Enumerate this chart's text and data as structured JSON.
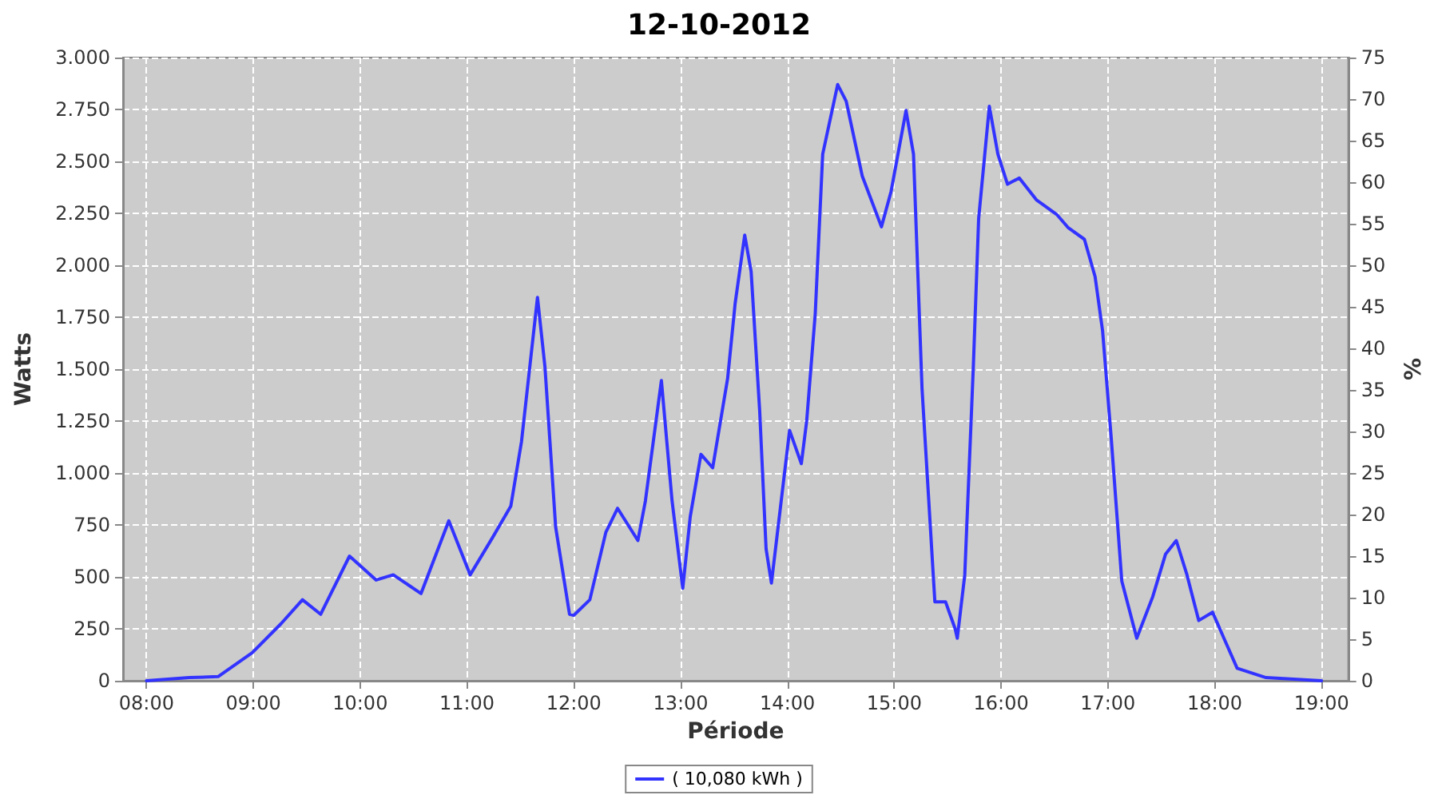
{
  "chart_data": {
    "type": "line",
    "title": "12-10-2012",
    "xlabel": "Période",
    "ylabel": "Watts",
    "y2label": "%",
    "xlim": [
      7.78,
      19.25
    ],
    "xticks": [
      {
        "value": 8,
        "label": "08:00"
      },
      {
        "value": 9,
        "label": "09:00"
      },
      {
        "value": 10,
        "label": "10:00"
      },
      {
        "value": 11,
        "label": "11:00"
      },
      {
        "value": 12,
        "label": "12:00"
      },
      {
        "value": 13,
        "label": "13:00"
      },
      {
        "value": 14,
        "label": "14:00"
      },
      {
        "value": 15,
        "label": "15:00"
      },
      {
        "value": 16,
        "label": "16:00"
      },
      {
        "value": 17,
        "label": "17:00"
      },
      {
        "value": 18,
        "label": "18:00"
      },
      {
        "value": 19,
        "label": "19:00"
      }
    ],
    "ylim": [
      0,
      3000
    ],
    "yticks": [
      0,
      250,
      500,
      750,
      {
        "value": 1000,
        "label": "1.000"
      },
      {
        "value": 1250,
        "label": "1.250"
      },
      {
        "value": 1500,
        "label": "1.500"
      },
      {
        "value": 1750,
        "label": "1.750"
      },
      {
        "value": 2000,
        "label": "2.000"
      },
      {
        "value": 2250,
        "label": "2.250"
      },
      {
        "value": 2500,
        "label": "2.500"
      },
      {
        "value": 2750,
        "label": "2.750"
      },
      {
        "value": 3000,
        "label": "3.000"
      }
    ],
    "y2lim": [
      0,
      75
    ],
    "y2ticks": [
      0,
      5,
      10,
      15,
      20,
      25,
      30,
      35,
      40,
      45,
      50,
      55,
      60,
      65,
      70,
      75
    ],
    "grid": true,
    "legend": "bottom",
    "marker": "none",
    "line_style": "solid",
    "series": [
      {
        "name": "( 10,080 kWh )",
        "color": "#3333ff",
        "x": [
          8.0,
          8.4,
          8.67,
          8.99,
          9.26,
          9.46,
          9.63,
          9.9,
          10.15,
          10.31,
          10.57,
          10.83,
          11.03,
          11.24,
          11.41,
          11.51,
          11.66,
          11.73,
          11.83,
          11.96,
          12.0,
          12.15,
          12.3,
          12.41,
          12.6,
          12.67,
          12.82,
          12.92,
          13.02,
          13.09,
          13.19,
          13.3,
          13.44,
          13.51,
          13.6,
          13.66,
          13.74,
          13.8,
          13.85,
          13.93,
          14.02,
          14.13,
          14.18,
          14.26,
          14.33,
          14.47,
          14.55,
          14.7,
          14.88,
          14.97,
          15.11,
          15.18,
          15.26,
          15.38,
          15.48,
          15.57,
          15.59,
          15.66,
          15.74,
          15.79,
          15.89,
          15.97,
          16.06,
          16.17,
          16.33,
          16.52,
          16.63,
          16.78,
          16.88,
          16.95,
          17.03,
          17.13,
          17.27,
          17.42,
          17.54,
          17.64,
          17.74,
          17.85,
          17.98,
          18.09,
          18.21,
          18.48,
          19.0
        ],
        "values": [
          0,
          15,
          20,
          135,
          275,
          390,
          320,
          600,
          485,
          510,
          420,
          770,
          510,
          690,
          840,
          1150,
          1845,
          1510,
          740,
          320,
          315,
          390,
          715,
          830,
          675,
          865,
          1445,
          865,
          445,
          790,
          1090,
          1025,
          1455,
          1815,
          2145,
          1970,
          1300,
          635,
          470,
          815,
          1205,
          1045,
          1250,
          1765,
          2535,
          2870,
          2790,
          2430,
          2185,
          2355,
          2745,
          2535,
          1405,
          380,
          380,
          250,
          205,
          510,
          1510,
          2225,
          2765,
          2535,
          2390,
          2420,
          2315,
          2245,
          2180,
          2125,
          1945,
          1685,
          1175,
          480,
          205,
          405,
          610,
          675,
          510,
          290,
          330,
          200,
          60,
          15,
          0
        ]
      }
    ]
  }
}
